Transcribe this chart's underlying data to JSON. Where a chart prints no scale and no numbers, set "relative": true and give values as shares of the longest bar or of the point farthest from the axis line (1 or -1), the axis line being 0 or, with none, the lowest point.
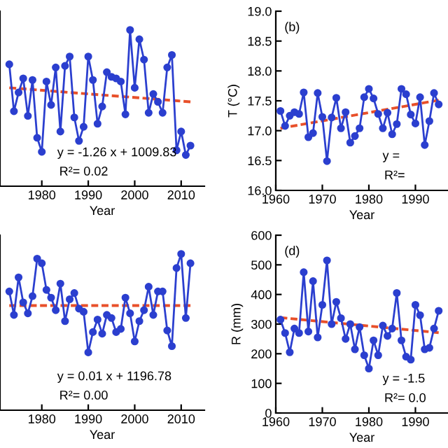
{
  "chart_data": [
    {
      "type": "line",
      "relative": true,
      "xlabel": "Year",
      "marker": "circle",
      "tick_labels": "x",
      "annotations": [
        "y = -1.26 x + 1009.83",
        "R²= 0.02"
      ],
      "xlim": [
        1971,
        2015
      ],
      "xticks": [
        1980,
        1990,
        2000,
        2010
      ],
      "x": [
        1973,
        1974,
        1975,
        1976,
        1977,
        1978,
        1979,
        1980,
        1981,
        1982,
        1983,
        1984,
        1985,
        1986,
        1987,
        1988,
        1989,
        1990,
        1991,
        1992,
        1993,
        1994,
        1995,
        1996,
        1997,
        1998,
        1999,
        2000,
        2001,
        2002,
        2003,
        2004,
        2005,
        2006,
        2007,
        2008,
        2009,
        2010,
        2011,
        2012
      ],
      "series": [
        {
          "color": "#2b3fcf",
          "values": [
            0.78,
            0.48,
            0.6,
            0.69,
            0.45,
            0.68,
            0.31,
            0.22,
            0.67,
            0.52,
            0.76,
            0.35,
            0.77,
            0.83,
            0.44,
            0.29,
            0.38,
            0.83,
            0.68,
            0.4,
            0.51,
            0.73,
            0.7,
            0.69,
            0.67,
            0.46,
            1.0,
            0.63,
            0.94,
            0.81,
            0.47,
            0.59,
            0.54,
            0.47,
            0.76,
            0.84,
            0.23,
            0.35,
            0.2,
            0.26
          ]
        },
        {
          "color": "#e8502a",
          "marker": "none",
          "line_style": "dashed",
          "x": [
            1973,
            2012
          ],
          "values": [
            0.63,
            0.54
          ]
        }
      ]
    },
    {
      "type": "line",
      "title": "(b)",
      "xlabel": "Year",
      "ylabel": "T (°C)",
      "marker": "circle",
      "annotations": [
        "y =",
        "R²="
      ],
      "xlim": [
        1960,
        1997
      ],
      "xticks": [
        1960,
        1970,
        1980,
        1990
      ],
      "ylim": [
        16,
        19
      ],
      "yticks": [
        {
          "value": 16,
          "label": "16.0"
        },
        16.5,
        {
          "value": 17,
          "label": "17.0"
        },
        17.5,
        {
          "value": 18,
          "label": "18.0"
        },
        18.5,
        {
          "value": 19,
          "label": "19.0"
        }
      ],
      "x": [
        1961,
        1962,
        1963,
        1964,
        1965,
        1966,
        1967,
        1968,
        1969,
        1970,
        1971,
        1972,
        1973,
        1974,
        1975,
        1976,
        1977,
        1978,
        1979,
        1980,
        1981,
        1982,
        1983,
        1984,
        1985,
        1986,
        1987,
        1988,
        1989,
        1990,
        1991,
        1992,
        1993,
        1994,
        1995
      ],
      "series": [
        {
          "color": "#2b3fcf",
          "values": [
            17.33,
            17.08,
            17.25,
            17.31,
            17.28,
            17.64,
            16.89,
            16.96,
            17.63,
            17.23,
            16.49,
            17.22,
            17.55,
            17.04,
            17.31,
            16.8,
            16.91,
            17.04,
            17.56,
            17.7,
            17.54,
            17.28,
            17.04,
            17.3,
            16.94,
            17.11,
            17.7,
            17.61,
            17.27,
            17.12,
            17.56,
            16.76,
            17.16,
            17.63,
            17.44
          ]
        },
        {
          "color": "#e8502a",
          "marker": "none",
          "line_style": "dashed",
          "x": [
            1961,
            1995
          ],
          "values": [
            17.04,
            17.51
          ]
        }
      ]
    },
    {
      "type": "line",
      "relative": true,
      "xlabel": "Year",
      "marker": "circle",
      "tick_labels": "x",
      "annotations": [
        "y = 0.01 x + 1196.78",
        "R²= 0.00"
      ],
      "xlim": [
        1971,
        2015
      ],
      "xticks": [
        1980,
        1990,
        2000,
        2010
      ],
      "x": [
        1973,
        1974,
        1975,
        1976,
        1977,
        1978,
        1979,
        1980,
        1981,
        1982,
        1983,
        1984,
        1985,
        1986,
        1987,
        1988,
        1989,
        1990,
        1991,
        1992,
        1993,
        1994,
        1995,
        1996,
        1997,
        1998,
        1999,
        2000,
        2001,
        2002,
        2003,
        2004,
        2005,
        2006,
        2007,
        2008,
        2009,
        2010,
        2011,
        2012
      ],
      "series": [
        {
          "color": "#2b3fcf",
          "values": [
            0.76,
            0.61,
            0.85,
            0.69,
            0.62,
            0.73,
            0.97,
            0.94,
            0.77,
            0.72,
            0.64,
            0.81,
            0.57,
            0.71,
            0.75,
            0.65,
            0.63,
            0.37,
            0.5,
            0.58,
            0.49,
            0.61,
            0.59,
            0.5,
            0.52,
            0.72,
            0.62,
            0.44,
            0.57,
            0.64,
            0.79,
            0.61,
            0.76,
            0.76,
            0.51,
            0.41,
            0.91,
            1.0,
            0.59,
            0.94
          ]
        },
        {
          "color": "#e8502a",
          "marker": "none",
          "line_style": "dashed",
          "x": [
            1973,
            2012
          ],
          "values": [
            0.67,
            0.67
          ]
        }
      ]
    },
    {
      "type": "line",
      "title": "(d)",
      "xlabel": "Year",
      "ylabel": "R (mm)",
      "marker": "circle",
      "annotations": [
        "y = -1.5",
        "R²= 0.0"
      ],
      "xlim": [
        1960,
        1997
      ],
      "xticks": [
        1960,
        1970,
        1980,
        1990
      ],
      "ylim": [
        0,
        600
      ],
      "yticks": [
        0,
        100,
        200,
        300,
        400,
        500,
        600
      ],
      "x": [
        1961,
        1962,
        1963,
        1964,
        1965,
        1966,
        1967,
        1968,
        1969,
        1970,
        1971,
        1972,
        1973,
        1974,
        1975,
        1976,
        1977,
        1978,
        1979,
        1980,
        1981,
        1982,
        1983,
        1984,
        1985,
        1986,
        1987,
        1988,
        1989,
        1990,
        1991,
        1992,
        1993,
        1994,
        1995
      ],
      "series": [
        {
          "color": "#2b3fcf",
          "values": [
            315,
            270,
            205,
            285,
            270,
            475,
            275,
            445,
            255,
            365,
            515,
            300,
            375,
            320,
            250,
            300,
            215,
            290,
            195,
            150,
            245,
            195,
            295,
            260,
            285,
            405,
            245,
            190,
            180,
            365,
            330,
            215,
            220,
            285,
            345
          ]
        },
        {
          "color": "#e8502a",
          "marker": "none",
          "line_style": "dashed",
          "x": [
            1961,
            1995
          ],
          "values": [
            322,
            271
          ]
        }
      ]
    }
  ]
}
